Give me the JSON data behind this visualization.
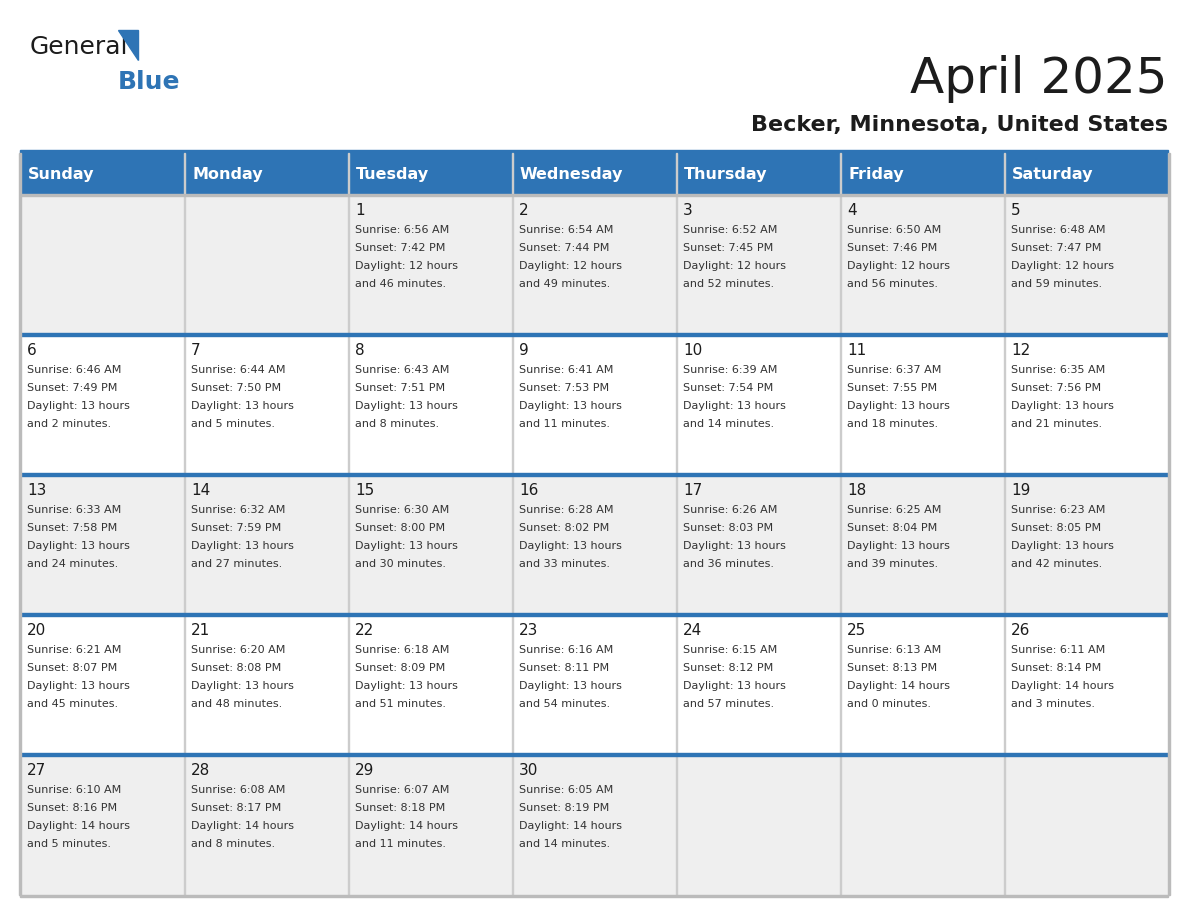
{
  "title": "April 2025",
  "subtitle": "Becker, Minnesota, United States",
  "header_bg": "#2E74B5",
  "header_text_color": "#FFFFFF",
  "cell_bg_light": "#EFEFEF",
  "cell_bg_white": "#FFFFFF",
  "day_names": [
    "Sunday",
    "Monday",
    "Tuesday",
    "Wednesday",
    "Thursday",
    "Friday",
    "Saturday"
  ],
  "weeks": [
    [
      {
        "day": "",
        "sunrise": "",
        "sunset": "",
        "daylight": ""
      },
      {
        "day": "",
        "sunrise": "",
        "sunset": "",
        "daylight": ""
      },
      {
        "day": "1",
        "sunrise": "Sunrise: 6:56 AM",
        "sunset": "Sunset: 7:42 PM",
        "daylight": "Daylight: 12 hours\nand 46 minutes."
      },
      {
        "day": "2",
        "sunrise": "Sunrise: 6:54 AM",
        "sunset": "Sunset: 7:44 PM",
        "daylight": "Daylight: 12 hours\nand 49 minutes."
      },
      {
        "day": "3",
        "sunrise": "Sunrise: 6:52 AM",
        "sunset": "Sunset: 7:45 PM",
        "daylight": "Daylight: 12 hours\nand 52 minutes."
      },
      {
        "day": "4",
        "sunrise": "Sunrise: 6:50 AM",
        "sunset": "Sunset: 7:46 PM",
        "daylight": "Daylight: 12 hours\nand 56 minutes."
      },
      {
        "day": "5",
        "sunrise": "Sunrise: 6:48 AM",
        "sunset": "Sunset: 7:47 PM",
        "daylight": "Daylight: 12 hours\nand 59 minutes."
      }
    ],
    [
      {
        "day": "6",
        "sunrise": "Sunrise: 6:46 AM",
        "sunset": "Sunset: 7:49 PM",
        "daylight": "Daylight: 13 hours\nand 2 minutes."
      },
      {
        "day": "7",
        "sunrise": "Sunrise: 6:44 AM",
        "sunset": "Sunset: 7:50 PM",
        "daylight": "Daylight: 13 hours\nand 5 minutes."
      },
      {
        "day": "8",
        "sunrise": "Sunrise: 6:43 AM",
        "sunset": "Sunset: 7:51 PM",
        "daylight": "Daylight: 13 hours\nand 8 minutes."
      },
      {
        "day": "9",
        "sunrise": "Sunrise: 6:41 AM",
        "sunset": "Sunset: 7:53 PM",
        "daylight": "Daylight: 13 hours\nand 11 minutes."
      },
      {
        "day": "10",
        "sunrise": "Sunrise: 6:39 AM",
        "sunset": "Sunset: 7:54 PM",
        "daylight": "Daylight: 13 hours\nand 14 minutes."
      },
      {
        "day": "11",
        "sunrise": "Sunrise: 6:37 AM",
        "sunset": "Sunset: 7:55 PM",
        "daylight": "Daylight: 13 hours\nand 18 minutes."
      },
      {
        "day": "12",
        "sunrise": "Sunrise: 6:35 AM",
        "sunset": "Sunset: 7:56 PM",
        "daylight": "Daylight: 13 hours\nand 21 minutes."
      }
    ],
    [
      {
        "day": "13",
        "sunrise": "Sunrise: 6:33 AM",
        "sunset": "Sunset: 7:58 PM",
        "daylight": "Daylight: 13 hours\nand 24 minutes."
      },
      {
        "day": "14",
        "sunrise": "Sunrise: 6:32 AM",
        "sunset": "Sunset: 7:59 PM",
        "daylight": "Daylight: 13 hours\nand 27 minutes."
      },
      {
        "day": "15",
        "sunrise": "Sunrise: 6:30 AM",
        "sunset": "Sunset: 8:00 PM",
        "daylight": "Daylight: 13 hours\nand 30 minutes."
      },
      {
        "day": "16",
        "sunrise": "Sunrise: 6:28 AM",
        "sunset": "Sunset: 8:02 PM",
        "daylight": "Daylight: 13 hours\nand 33 minutes."
      },
      {
        "day": "17",
        "sunrise": "Sunrise: 6:26 AM",
        "sunset": "Sunset: 8:03 PM",
        "daylight": "Daylight: 13 hours\nand 36 minutes."
      },
      {
        "day": "18",
        "sunrise": "Sunrise: 6:25 AM",
        "sunset": "Sunset: 8:04 PM",
        "daylight": "Daylight: 13 hours\nand 39 minutes."
      },
      {
        "day": "19",
        "sunrise": "Sunrise: 6:23 AM",
        "sunset": "Sunset: 8:05 PM",
        "daylight": "Daylight: 13 hours\nand 42 minutes."
      }
    ],
    [
      {
        "day": "20",
        "sunrise": "Sunrise: 6:21 AM",
        "sunset": "Sunset: 8:07 PM",
        "daylight": "Daylight: 13 hours\nand 45 minutes."
      },
      {
        "day": "21",
        "sunrise": "Sunrise: 6:20 AM",
        "sunset": "Sunset: 8:08 PM",
        "daylight": "Daylight: 13 hours\nand 48 minutes."
      },
      {
        "day": "22",
        "sunrise": "Sunrise: 6:18 AM",
        "sunset": "Sunset: 8:09 PM",
        "daylight": "Daylight: 13 hours\nand 51 minutes."
      },
      {
        "day": "23",
        "sunrise": "Sunrise: 6:16 AM",
        "sunset": "Sunset: 8:11 PM",
        "daylight": "Daylight: 13 hours\nand 54 minutes."
      },
      {
        "day": "24",
        "sunrise": "Sunrise: 6:15 AM",
        "sunset": "Sunset: 8:12 PM",
        "daylight": "Daylight: 13 hours\nand 57 minutes."
      },
      {
        "day": "25",
        "sunrise": "Sunrise: 6:13 AM",
        "sunset": "Sunset: 8:13 PM",
        "daylight": "Daylight: 14 hours\nand 0 minutes."
      },
      {
        "day": "26",
        "sunrise": "Sunrise: 6:11 AM",
        "sunset": "Sunset: 8:14 PM",
        "daylight": "Daylight: 14 hours\nand 3 minutes."
      }
    ],
    [
      {
        "day": "27",
        "sunrise": "Sunrise: 6:10 AM",
        "sunset": "Sunset: 8:16 PM",
        "daylight": "Daylight: 14 hours\nand 5 minutes."
      },
      {
        "day": "28",
        "sunrise": "Sunrise: 6:08 AM",
        "sunset": "Sunset: 8:17 PM",
        "daylight": "Daylight: 14 hours\nand 8 minutes."
      },
      {
        "day": "29",
        "sunrise": "Sunrise: 6:07 AM",
        "sunset": "Sunset: 8:18 PM",
        "daylight": "Daylight: 14 hours\nand 11 minutes."
      },
      {
        "day": "30",
        "sunrise": "Sunrise: 6:05 AM",
        "sunset": "Sunset: 8:19 PM",
        "daylight": "Daylight: 14 hours\nand 14 minutes."
      },
      {
        "day": "",
        "sunrise": "",
        "sunset": "",
        "daylight": ""
      },
      {
        "day": "",
        "sunrise": "",
        "sunset": "",
        "daylight": ""
      },
      {
        "day": "",
        "sunrise": "",
        "sunset": "",
        "daylight": ""
      }
    ]
  ]
}
